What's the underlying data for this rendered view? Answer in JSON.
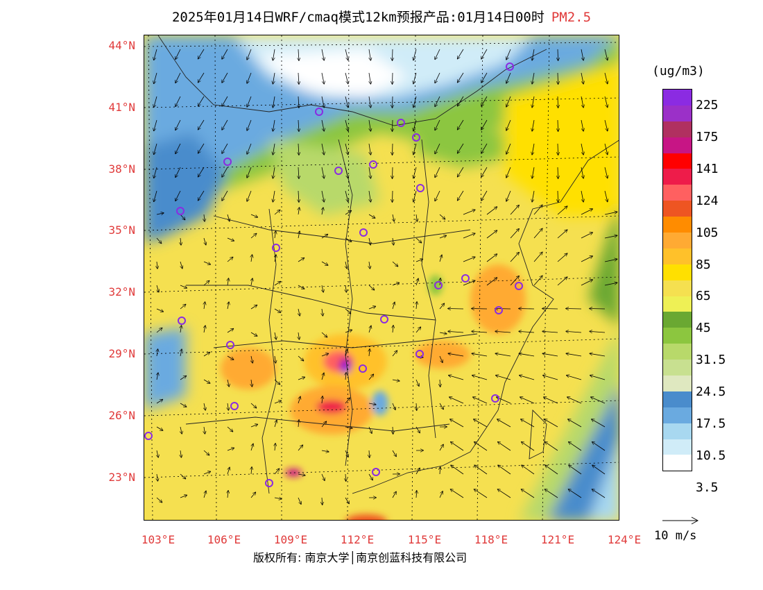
{
  "title": {
    "text": "2025年01月14日WRF/cmaq模式12km预报产品:01月14日00时",
    "pollutant": "PM2.5"
  },
  "latitude_labels": [
    "44°N",
    "41°N",
    "38°N",
    "35°N",
    "32°N",
    "29°N",
    "26°N",
    "23°N"
  ],
  "longitude_labels": [
    "103°E",
    "106°E",
    "109°E",
    "112°E",
    "115°E",
    "118°E",
    "121°E",
    "124°E"
  ],
  "colorbar": {
    "unit": "(ug/m3)",
    "colors": [
      "#8b2be2",
      "#9b30c8",
      "#b03060",
      "#c71585",
      "#ff0000",
      "#ee1c4a",
      "#ff6060",
      "#ee5522",
      "#ff8c00",
      "#ffaa33",
      "#ffc12a",
      "#ffe000",
      "#f5e050",
      "#eef055",
      "#6aa832",
      "#8cc63f",
      "#b8d96a",
      "#c8e090",
      "#dfe8c0",
      "#4a8ccc",
      "#6aaae0",
      "#a8d8f0",
      "#d0ecf8",
      "#ffffff"
    ],
    "tick_labels": [
      "225",
      "175",
      "141",
      "124",
      "105",
      "85",
      "65",
      "45",
      "31.5",
      "24.5",
      "17.5",
      "10.5",
      "3.5"
    ]
  },
  "wind_reference": "10 m/s",
  "copyright": "版权所有: 南京大学│南京创蓝科技有限公司",
  "colors": {
    "label_red": "#e03a3a",
    "station_marker": "#8a2be2"
  }
}
